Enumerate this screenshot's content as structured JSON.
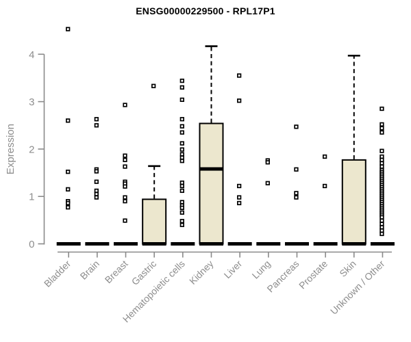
{
  "colors": {
    "title_text": "#000000",
    "axis_line": "#8a8a8a",
    "axis_text": "#8d8d8d",
    "box_fill": "#ECE7CE",
    "box_stroke": "#000000",
    "point_color": "#000000",
    "background": "#ffffff"
  },
  "chart_data": {
    "type": "boxplot",
    "title": "ENSG00000229500 - RPL17P1",
    "ylabel": "Expression",
    "xlabel": "",
    "ylim": [
      0,
      4.6
    ],
    "yticks": [
      0,
      1,
      2,
      3,
      4
    ],
    "grid": false,
    "legend": "none",
    "categories": [
      "Bladder",
      "Brain",
      "Breast",
      "Gastric",
      "Hematopoietic cells",
      "Kidney",
      "Liver",
      "Lung",
      "Pancreas",
      "Prostate",
      "Skin",
      "Unknown / Other"
    ],
    "series": [
      {
        "name": "Bladder",
        "q1": 0,
        "median": 0,
        "q3": 0,
        "whisker_low": 0,
        "whisker_high": 0,
        "outliers": [
          4.53,
          2.6,
          1.52,
          1.15,
          0.9,
          0.86,
          0.77
        ]
      },
      {
        "name": "Brain",
        "q1": 0,
        "median": 0,
        "q3": 0,
        "whisker_low": 0,
        "whisker_high": 0,
        "outliers": [
          2.63,
          2.5,
          1.57,
          1.53,
          1.31,
          1.12,
          1.05,
          0.98
        ]
      },
      {
        "name": "Breast",
        "q1": 0,
        "median": 0,
        "q3": 0,
        "whisker_low": 0,
        "whisker_high": 0,
        "outliers": [
          2.93,
          1.86,
          1.77,
          1.63,
          1.31,
          1.27,
          1.21,
          0.98,
          0.9,
          0.49
        ]
      },
      {
        "name": "Gastric",
        "q1": 0,
        "median": 0,
        "q3": 0.94,
        "whisker_low": 0,
        "whisker_high": 1.64,
        "outliers": [
          3.33
        ]
      },
      {
        "name": "Hematopoietic cells",
        "q1": 0,
        "median": 0,
        "q3": 0,
        "whisker_low": 0,
        "whisker_high": 0,
        "outliers": [
          3.44,
          3.3,
          3.04,
          2.63,
          2.48,
          2.35,
          2.12,
          1.99,
          1.89,
          1.82,
          1.75,
          1.29,
          1.22,
          1.12,
          0.88,
          0.81,
          0.76,
          0.66,
          0.48,
          0.4
        ]
      },
      {
        "name": "Kidney",
        "q1": 0,
        "median": 1.58,
        "q3": 2.54,
        "whisker_low": 0,
        "whisker_high": 4.17,
        "outliers": []
      },
      {
        "name": "Liver",
        "q1": 0,
        "median": 0,
        "q3": 0,
        "whisker_low": 0,
        "whisker_high": 0,
        "outliers": [
          3.55,
          3.02,
          1.22,
          0.98,
          0.86
        ]
      },
      {
        "name": "Lung",
        "q1": 0,
        "median": 0,
        "q3": 0,
        "whisker_low": 0,
        "whisker_high": 0,
        "outliers": [
          1.76,
          1.72,
          1.28
        ]
      },
      {
        "name": "Pancreas",
        "q1": 0,
        "median": 0,
        "q3": 0,
        "whisker_low": 0,
        "whisker_high": 0,
        "outliers": [
          2.47,
          1.57,
          1.07,
          0.98
        ]
      },
      {
        "name": "Prostate",
        "q1": 0,
        "median": 0,
        "q3": 0,
        "whisker_low": 0,
        "whisker_high": 0,
        "outliers": [
          1.84,
          1.22
        ]
      },
      {
        "name": "Skin",
        "q1": 0,
        "median": 0,
        "q3": 1.77,
        "whisker_low": 0,
        "whisker_high": 3.97,
        "outliers": []
      },
      {
        "name": "Unknown / Other",
        "q1": 0,
        "median": 0,
        "q3": 0,
        "whisker_low": 0,
        "whisker_high": 0,
        "outliers": [
          2.85,
          2.52,
          2.44,
          2.35,
          1.96,
          1.84,
          1.77,
          1.7,
          1.63,
          1.56,
          1.52,
          1.48,
          1.44,
          1.4,
          1.36,
          1.32,
          1.28,
          1.24,
          1.2,
          1.16,
          1.12,
          1.08,
          1.04,
          1.0,
          0.96,
          0.92,
          0.88,
          0.84,
          0.8,
          0.76,
          0.72,
          0.68,
          0.64,
          0.6,
          0.56,
          0.49,
          0.42,
          0.35,
          0.28,
          0.21
        ]
      }
    ]
  }
}
